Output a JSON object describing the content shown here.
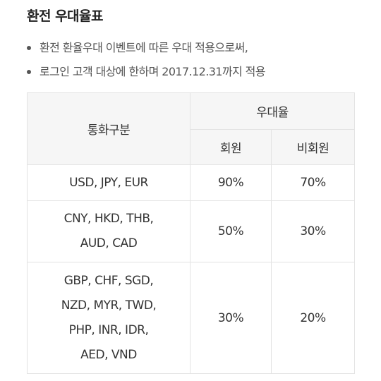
{
  "title": "환전 우대율표",
  "notes": [
    "환전 환율우대 이벤트에 따른 우대 적용으로써,",
    "로그인 고객 대상에 한하며 2017.12.31까지 적용"
  ],
  "table": {
    "header": {
      "currency": "통화구분",
      "rate_group": "우대율",
      "member": "회원",
      "non_member": "비회원"
    },
    "rows": [
      {
        "currencies": "USD, JPY, EUR",
        "member": "90%",
        "non_member": "70%"
      },
      {
        "currencies": "CNY, HKD, THB,\nAUD, CAD",
        "member": "50%",
        "non_member": "30%"
      },
      {
        "currencies": "GBP, CHF, SGD,\nNZD, MYR, TWD,\nPHP, INR, IDR,\nAED, VND",
        "member": "30%",
        "non_member": "20%"
      }
    ]
  },
  "colors": {
    "accent": "#f07e1e",
    "header_bg": "#f6f6f6",
    "border": "#e3e3e3"
  }
}
